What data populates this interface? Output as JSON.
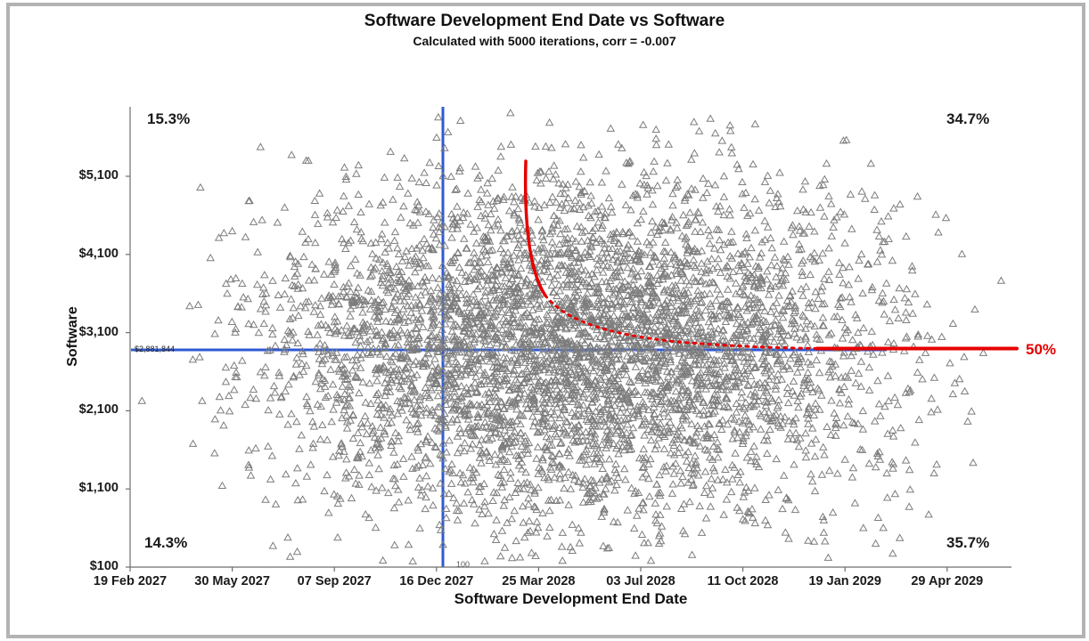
{
  "chart_data": {
    "type": "scatter",
    "title": "Software Development End Date vs Software",
    "subtitle": "Calculated with 5000 iterations, corr = -0.007",
    "xlabel": "Software Development End Date",
    "ylabel": "Software",
    "iterations": 5000,
    "correlation": -0.007,
    "n_points": 5000,
    "marker": "open-triangle",
    "marker_color": "#7d7d7d",
    "grid": false,
    "legend": "none",
    "x_tick_labels": [
      "19 Feb 2027",
      "30 May 2027",
      "07 Sep 2027",
      "16 Dec 2027",
      "25 Mar 2028",
      "03 Jul 2028",
      "11 Oct 2028",
      "19 Jan 2029",
      "29 Apr 2029"
    ],
    "y_tick_labels": [
      "$100",
      "$1,100",
      "$2,100",
      "$3,100",
      "$4,100",
      "$5,100"
    ],
    "x_range": [
      "19 Feb 2027",
      "29 Apr 2029"
    ],
    "y_range_dollars": [
      100,
      5900
    ],
    "quadrants": {
      "top_left": "15.3%",
      "top_right": "34.7%",
      "bottom_left": "14.3%",
      "bottom_right": "35.7%"
    },
    "reference_lines": {
      "vertical": {
        "axis": "x",
        "label": "100",
        "color": "#2f5ad4",
        "position_date": "16 Dec 2027"
      },
      "horizontal": {
        "axis": "y",
        "label": "$2,881,844",
        "color": "#2f5ad4"
      }
    },
    "percentile_curve": {
      "label": "50%",
      "color": "#e60000"
    },
    "axis_color": "#6e6e6e"
  }
}
